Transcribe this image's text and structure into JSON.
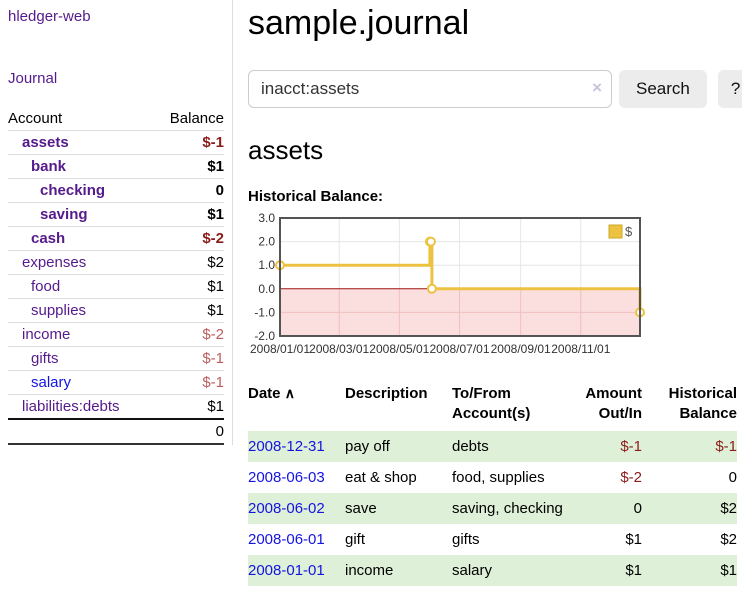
{
  "sidebar": {
    "brand": "hledger-web",
    "journal_link": "Journal",
    "accounts_table": {
      "col_account": "Account",
      "col_balance": "Balance",
      "rows": [
        {
          "name": "assets",
          "balance": "$-1",
          "depth": 1,
          "bold": true
        },
        {
          "name": "bank",
          "balance": "$1",
          "depth": 2,
          "bold": true
        },
        {
          "name": "checking",
          "balance": "0",
          "depth": 3,
          "bold": true
        },
        {
          "name": "saving",
          "balance": "$1",
          "depth": 3,
          "bold": true
        },
        {
          "name": "cash",
          "balance": "$-2",
          "depth": 2,
          "bold": true
        },
        {
          "name": "expenses",
          "balance": "$2",
          "depth": 1,
          "bold": false
        },
        {
          "name": "food",
          "balance": "$1",
          "depth": 2,
          "bold": false
        },
        {
          "name": "supplies",
          "balance": "$1",
          "depth": 2,
          "bold": false
        },
        {
          "name": "income",
          "balance": "$-2",
          "depth": 1,
          "bold": false
        },
        {
          "name": "gifts",
          "balance": "$-1",
          "depth": 2,
          "bold": false
        },
        {
          "name": "salary",
          "balance": "$-1",
          "depth": 2,
          "bold": false,
          "unvisited": true
        },
        {
          "name": "liabilities:debts",
          "balance": "$1",
          "depth": 1,
          "bold": false
        }
      ],
      "total": "0"
    }
  },
  "main": {
    "title": "sample.journal",
    "search": {
      "value": "inacct:assets",
      "clear_icon": "×",
      "search_button": "Search",
      "help_button": "?"
    },
    "account_heading": "assets",
    "chart_heading": "Historical Balance:"
  },
  "chart_data": {
    "type": "line",
    "step": true,
    "title": "Historical Balance",
    "series": [
      {
        "name": "$",
        "color": "#EDC240",
        "points": [
          [
            "2008/01/01",
            1
          ],
          [
            "2008/06/01",
            2
          ],
          [
            "2008/06/02",
            2
          ],
          [
            "2008/06/03",
            0
          ],
          [
            "2008/12/31",
            -1
          ]
        ]
      }
    ],
    "ylim": [
      -2,
      3
    ],
    "yticks": [
      3,
      2,
      1,
      0,
      -1,
      -2
    ],
    "ytick_labels": [
      "3.0",
      "2.0",
      "1.0",
      "0.0",
      "-1.0",
      "-2.0"
    ],
    "xrange": [
      "2008/01/01",
      "2008/12/31"
    ],
    "xticks": [
      "2008/01/01",
      "2008/03/01",
      "2008/05/01",
      "2008/07/01",
      "2008/09/01",
      "2008/11/01"
    ],
    "legend": {
      "label": "$",
      "position": "top-right"
    },
    "grid": true,
    "colors": {
      "line": "#EDC240",
      "marker_fill": "#ffffff",
      "negative_region": "#fbdede",
      "zero_line": "#a11212",
      "grid": "#e6e6e6",
      "grid_negative": "#f0bfbf",
      "border": "#545454",
      "tick_text": "#333333"
    }
  },
  "register_table": {
    "sort_icon": "∧",
    "columns": {
      "date": "Date",
      "description": "Description",
      "account_l1": "To/From",
      "account_l2": "Account(s)",
      "amount_l1": "Amount",
      "amount_l2": "Out/In",
      "balance_l1": "Historical",
      "balance_l2": "Balance"
    },
    "rows": [
      {
        "date": "2008-12-31",
        "description": "pay off",
        "accounts": "debts",
        "amount": "$-1",
        "balance": "$-1"
      },
      {
        "date": "2008-06-03",
        "description": "eat & shop",
        "accounts": "food, supplies",
        "amount": "$-2",
        "balance": "0"
      },
      {
        "date": "2008-06-02",
        "description": "save",
        "accounts": "saving, checking",
        "amount": "0",
        "balance": "$2"
      },
      {
        "date": "2008-06-01",
        "description": "gift",
        "accounts": "gifts",
        "amount": "$1",
        "balance": "$2"
      },
      {
        "date": "2008-01-01",
        "description": "income",
        "accounts": "salary",
        "amount": "$1",
        "balance": "$1"
      }
    ]
  }
}
